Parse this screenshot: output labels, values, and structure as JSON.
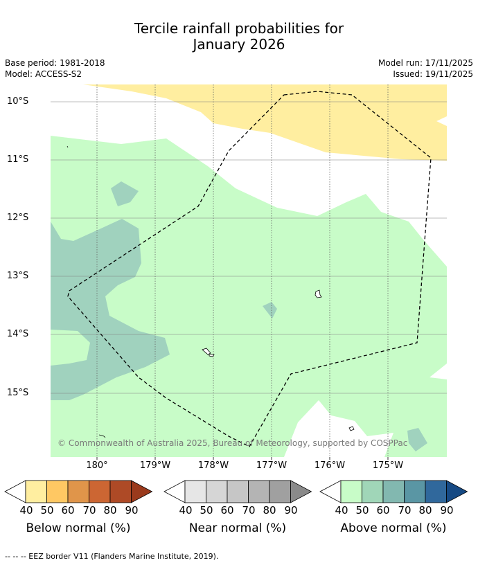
{
  "title": {
    "line1": "Tercile rainfall probabilities for",
    "line2": "January 2026"
  },
  "meta_left": {
    "base_period": "Base period: 1981-2018",
    "model": "Model: ACCESS-S2"
  },
  "meta_right": {
    "model_run": "Model run: 17/11/2025",
    "issued": "Issued: 19/11/2025"
  },
  "map": {
    "lat_labels": [
      "10°S",
      "11°S",
      "12°S",
      "13°S",
      "14°S",
      "15°S"
    ],
    "lon_labels": [
      "180°",
      "179°W",
      "178°W",
      "177°W",
      "176°W",
      "175°W"
    ],
    "copyright": "© Commonwealth of Australia 2025, Bureau of Meteorology, supported by COSPPac",
    "colors": {
      "below_40": "#ffeea0",
      "above_40": "#c8fcc8",
      "above_50": "#a0d2be",
      "near_40": "#e8e8e8",
      "land": "#ffffff",
      "grid": "#7f7f7f",
      "eez": "#000000"
    }
  },
  "colorbars": {
    "below": {
      "title": "Below normal (%)",
      "ticks": [
        "40",
        "50",
        "60",
        "70",
        "80",
        "90"
      ],
      "colors": [
        "#ffffff",
        "#ffeea0",
        "#ffc863",
        "#e0954a",
        "#cc6633",
        "#ae4a26",
        "#9a3a1c"
      ]
    },
    "near": {
      "title": "Near normal (%)",
      "ticks": [
        "40",
        "50",
        "60",
        "70",
        "80",
        "90"
      ],
      "colors": [
        "#ffffff",
        "#e6e6e6",
        "#d6d6d6",
        "#c6c6c6",
        "#b4b4b4",
        "#a0a0a0",
        "#8a8a8a"
      ]
    },
    "above": {
      "title": "Above normal (%)",
      "ticks": [
        "40",
        "50",
        "60",
        "70",
        "80",
        "90"
      ],
      "colors": [
        "#ffffff",
        "#c8fcc8",
        "#a0d6b8",
        "#82b8b0",
        "#5a96a4",
        "#30689c",
        "#164a84"
      ]
    }
  },
  "footer": "--  --  -- EEZ border V11 (Flanders Marine Institute, 2019)."
}
